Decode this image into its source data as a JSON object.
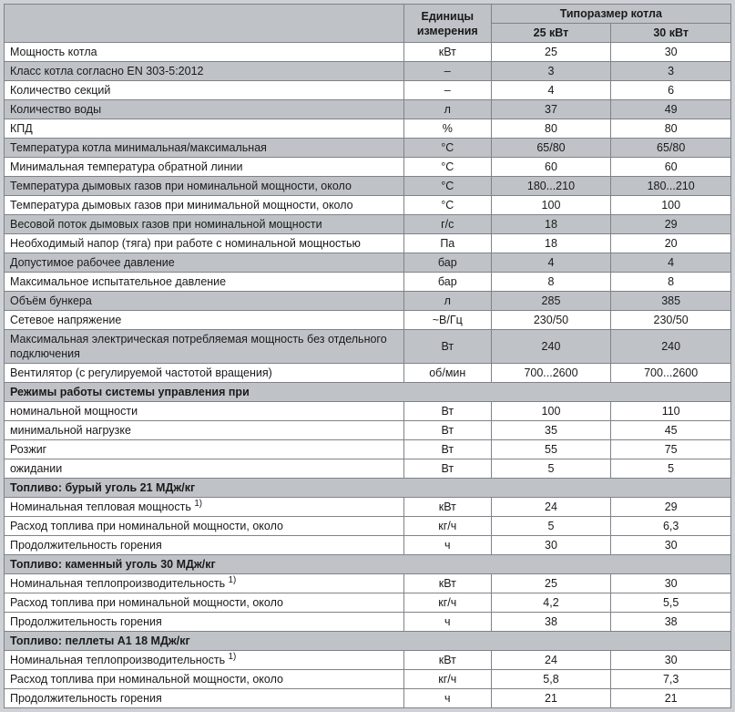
{
  "colors": {
    "page_bg": "#ced2d6",
    "cell_bg_white": "#ffffff",
    "cell_bg_grey": "#bfc3c8",
    "border": "#7f8388",
    "text": "#1a1a1a"
  },
  "typography": {
    "font_family": "Arial",
    "base_size_pt": 9.5,
    "header_weight": "bold"
  },
  "column_widths_pct": {
    "param": 55,
    "unit": 12,
    "val1": 16.5,
    "val2": 16.5
  },
  "header": {
    "unit": "Единицы измерения",
    "typesize": "Типоразмер котла",
    "col25": "25 кВт",
    "col30": "30 кВт"
  },
  "rows": {
    "power": {
      "label": "Мощность котла",
      "unit": "кВт",
      "v25": "25",
      "v30": "30",
      "shaded": false
    },
    "class": {
      "label": "Класс котла согласно EN 303-5:2012",
      "unit": "–",
      "v25": "3",
      "v30": "3",
      "shaded": true
    },
    "sections": {
      "label": "Количество секций",
      "unit": "–",
      "v25": "4",
      "v30": "6",
      "shaded": false
    },
    "water": {
      "label": "Количество воды",
      "unit": "л",
      "v25": "37",
      "v30": "49",
      "shaded": true
    },
    "kpd": {
      "label": "КПД",
      "unit": "%",
      "v25": "80",
      "v30": "80",
      "shaded": false
    },
    "tempminmax": {
      "label": "Температура котла минимальная/максимальная",
      "unit": "°C",
      "v25": "65/80",
      "v30": "65/80",
      "shaded": true
    },
    "tempreturn": {
      "label": "Минимальная температура обратной линии",
      "unit": "°C",
      "v25": "60",
      "v30": "60",
      "shaded": false
    },
    "fluenom": {
      "label": "Температура дымовых газов при номинальной мощности, около",
      "unit": "°C",
      "v25": "180...210",
      "v30": "180...210",
      "shaded": true
    },
    "fluemin": {
      "label": "Температура дымовых газов при минимальной мощности, около",
      "unit": "°C",
      "v25": "100",
      "v30": "100",
      "shaded": false
    },
    "massflow": {
      "label": "Весовой поток дымовых газов при номинальной мощности",
      "unit": "г/с",
      "v25": "18",
      "v30": "29",
      "shaded": true
    },
    "draught": {
      "label": "Необходимый напор (тяга) при работе с номинальной мощностью",
      "unit": "Па",
      "v25": "18",
      "v30": "20",
      "shaded": false
    },
    "press_work": {
      "label": "Допустимое рабочее давление",
      "unit": "бар",
      "v25": "4",
      "v30": "4",
      "shaded": true
    },
    "press_test": {
      "label": "Максимальное испытательное давление",
      "unit": "бар",
      "v25": "8",
      "v30": "8",
      "shaded": false
    },
    "hopper": {
      "label": "Объём бункера",
      "unit": "л",
      "v25": "285",
      "v30": "385",
      "shaded": true
    },
    "mains": {
      "label": "Сетевое напряжение",
      "unit": "~В/Гц",
      "v25": "230/50",
      "v30": "230/50",
      "shaded": false
    },
    "elec": {
      "label": "Максимальная электрическая потребляемая мощность без отдельного подключения",
      "unit": "Вт",
      "v25": "240",
      "v30": "240",
      "shaded": true
    },
    "fan": {
      "label": "Вентилятор (с регулируемой частотой вращения)",
      "unit": "об/мин",
      "v25": "700...2600",
      "v30": "700...2600",
      "shaded": false
    },
    "sec_modes": {
      "label": "Режимы работы системы управления при"
    },
    "mode_nom": {
      "label": "номинальной мощности",
      "unit": "Вт",
      "v25": "100",
      "v30": "110",
      "shaded": false
    },
    "mode_min": {
      "label": "минимальной нагрузке",
      "unit": "Вт",
      "v25": "35",
      "v30": "45",
      "shaded": false
    },
    "mode_ign": {
      "label": "Розжиг",
      "unit": "Вт",
      "v25": "55",
      "v30": "75",
      "shaded": false
    },
    "mode_idle": {
      "label": "ожидании",
      "unit": "Вт",
      "v25": "5",
      "v30": "5",
      "shaded": false
    },
    "sec_brown": {
      "label": "Топливо: бурый уголь 21 МДж/кг"
    },
    "brown_power": {
      "label": "Номинальная тепловая мощность ",
      "sup": "1)",
      "unit": "кВт",
      "v25": "24",
      "v30": "29",
      "shaded": false
    },
    "brown_cons": {
      "label": "Расход топлива при номинальной мощности, около",
      "unit": "кг/ч",
      "v25": "5",
      "v30": "6,3",
      "shaded": false
    },
    "brown_dur": {
      "label": "Продолжительность горения",
      "unit": "ч",
      "v25": "30",
      "v30": "30",
      "shaded": false
    },
    "sec_hard": {
      "label": "Топливо: каменный уголь 30 МДж/кг"
    },
    "hard_power": {
      "label": "Номинальная теплопроизводительность ",
      "sup": "1)",
      "unit": "кВт",
      "v25": "25",
      "v30": "30",
      "shaded": false
    },
    "hard_cons": {
      "label": "Расход топлива при номинальной мощности, около",
      "unit": "кг/ч",
      "v25": "4,2",
      "v30": "5,5",
      "shaded": false
    },
    "hard_dur": {
      "label": "Продолжительность горения",
      "unit": "ч",
      "v25": "38",
      "v30": "38",
      "shaded": false
    },
    "sec_pellet": {
      "label": "Топливо: пеллеты A1 18 МДж/кг"
    },
    "pellet_power": {
      "label": "Номинальная теплопроизводительность ",
      "sup": "1)",
      "unit": "кВт",
      "v25": "24",
      "v30": "30",
      "shaded": false
    },
    "pellet_cons": {
      "label": "Расход топлива при номинальной мощности, около",
      "unit": "кг/ч",
      "v25": "5,8",
      "v30": "7,3",
      "shaded": false
    },
    "pellet_dur": {
      "label": "Продолжительность горения",
      "unit": "ч",
      "v25": "21",
      "v30": "21",
      "shaded": false
    }
  },
  "order": [
    "power",
    "class",
    "sections",
    "water",
    "kpd",
    "tempminmax",
    "tempreturn",
    "fluenom",
    "fluemin",
    "massflow",
    "draught",
    "press_work",
    "press_test",
    "hopper",
    "mains",
    "elec",
    "fan",
    "sec_modes",
    "mode_nom",
    "mode_min",
    "mode_ign",
    "mode_idle",
    "sec_brown",
    "brown_power",
    "brown_cons",
    "brown_dur",
    "sec_hard",
    "hard_power",
    "hard_cons",
    "hard_dur",
    "sec_pellet",
    "pellet_power",
    "pellet_cons",
    "pellet_dur"
  ]
}
